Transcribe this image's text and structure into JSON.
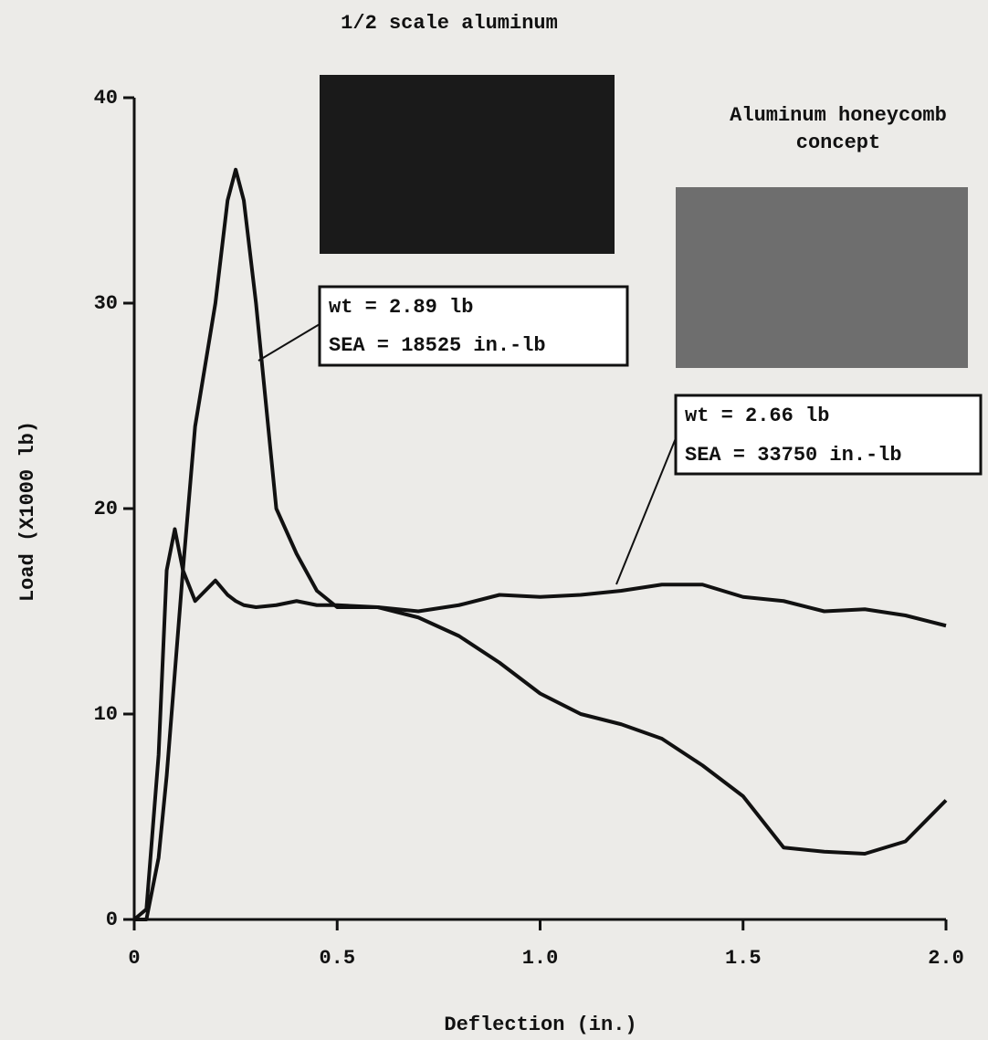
{
  "chart_data": {
    "type": "line",
    "x_label": "Deflection (in.)",
    "y_label": "Load (X1000 lb)",
    "photo_captions": [
      "1/2 scale aluminum",
      "Aluminum honeycomb",
      "concept"
    ],
    "annotations": [
      {
        "lines": [
          "wt = 2.89 lb",
          "SEA = 18525 in.-lb"
        ]
      },
      {
        "lines": [
          "wt = 2.66 lb",
          "SEA = 33750 in.-lb"
        ]
      }
    ],
    "x": [
      0,
      0.03,
      0.06,
      0.08,
      0.1,
      0.12,
      0.15,
      0.2,
      0.23,
      0.25,
      0.27,
      0.3,
      0.35,
      0.4,
      0.45,
      0.5,
      0.6,
      0.7,
      0.8,
      0.9,
      1.0,
      1.1,
      1.2,
      1.3,
      1.4,
      1.5,
      1.6,
      1.7,
      1.8,
      1.9,
      2.0
    ],
    "series": [
      {
        "color": "#111111",
        "values": [
          0,
          0,
          3,
          7,
          12,
          17,
          24,
          30,
          35,
          36.5,
          35,
          30,
          20,
          17.8,
          16,
          15.2,
          15.2,
          14.7,
          13.8,
          12.5,
          11,
          10,
          9.5,
          8.8,
          7.5,
          6,
          3.5,
          3.3,
          3.2,
          3.8,
          5.8
        ]
      },
      {
        "color": "#111111",
        "values": [
          0,
          0.5,
          8,
          17,
          19,
          17,
          15.5,
          16.5,
          15.8,
          15.5,
          15.3,
          15.2,
          15.3,
          15.5,
          15.3,
          15.3,
          15.2,
          15,
          15.3,
          15.8,
          15.7,
          15.8,
          16,
          16.3,
          16.3,
          15.7,
          15.5,
          15,
          15.1,
          14.8,
          14.3
        ]
      }
    ],
    "xlim": [
      0,
      2
    ],
    "xticks": [
      0,
      0.5,
      {
        "value": 1,
        "label": "1.0"
      },
      1.5,
      {
        "value": 2,
        "label": "2.0"
      }
    ],
    "ylim": [
      0,
      40
    ],
    "yticks": [
      0,
      10,
      20,
      30,
      40
    ]
  }
}
